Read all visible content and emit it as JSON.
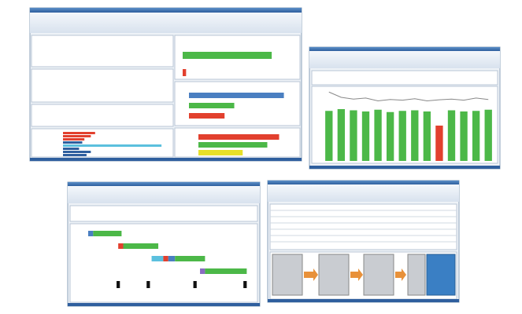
{
  "screen1": {
    "top_chart": {
      "values": [
        78,
        3
      ],
      "colors": [
        "#4cb848",
        "#e2402e"
      ]
    },
    "mid_chart": {
      "values": [
        88,
        42,
        33
      ],
      "colors": [
        "#4a7fc1",
        "#4cb848",
        "#e2402e"
      ]
    },
    "bottom_chart": {
      "values": [
        82,
        70,
        45
      ],
      "colors": [
        "#e2402e",
        "#4cb848",
        "#e6e02a"
      ]
    },
    "left_chart": {
      "values": [
        30,
        26,
        20,
        18,
        92,
        15,
        26,
        22
      ],
      "colors": [
        "#e2402e",
        "#e2402e",
        "#e2402e",
        "#2f5f9e",
        "#5bc0de",
        "#2f5f9e",
        "#2f5f9e",
        "#2f5f9e"
      ]
    }
  },
  "screen2": {
    "columns": [
      85,
      88,
      86,
      84,
      87,
      83,
      85,
      86,
      84,
      60,
      86,
      84,
      85,
      87
    ],
    "column_color": "#4cb848",
    "highlight_index": 9,
    "highlight_color": "#e2402e",
    "line": [
      95,
      80,
      75,
      78,
      70,
      74,
      72,
      76,
      70,
      73,
      75,
      72,
      78,
      74
    ]
  },
  "screen3": {
    "tasks": [
      {
        "row": 0,
        "start": 0,
        "end": 3,
        "color": "#4a7fc1"
      },
      {
        "row": 0,
        "start": 3,
        "end": 20,
        "color": "#4cb848"
      },
      {
        "row": 1,
        "start": 18,
        "end": 21,
        "color": "#e2402e"
      },
      {
        "row": 1,
        "start": 21,
        "end": 42,
        "color": "#4cb848"
      },
      {
        "row": 2,
        "start": 38,
        "end": 45,
        "color": "#5bc0de"
      },
      {
        "row": 2,
        "start": 45,
        "end": 48,
        "color": "#e2402e"
      },
      {
        "row": 2,
        "start": 48,
        "end": 52,
        "color": "#4a7fc1"
      },
      {
        "row": 2,
        "start": 52,
        "end": 70,
        "color": "#4cb848"
      },
      {
        "row": 3,
        "start": 67,
        "end": 70,
        "color": "#8a6cc1"
      },
      {
        "row": 3,
        "start": 70,
        "end": 95,
        "color": "#4cb848"
      },
      {
        "row": 4,
        "start": 17,
        "end": 19,
        "color": "#111111"
      },
      {
        "row": 4,
        "start": 35,
        "end": 37,
        "color": "#111111"
      },
      {
        "row": 4,
        "start": 63,
        "end": 65,
        "color": "#111111"
      },
      {
        "row": 4,
        "start": 93,
        "end": 95,
        "color": "#111111"
      }
    ]
  }
}
